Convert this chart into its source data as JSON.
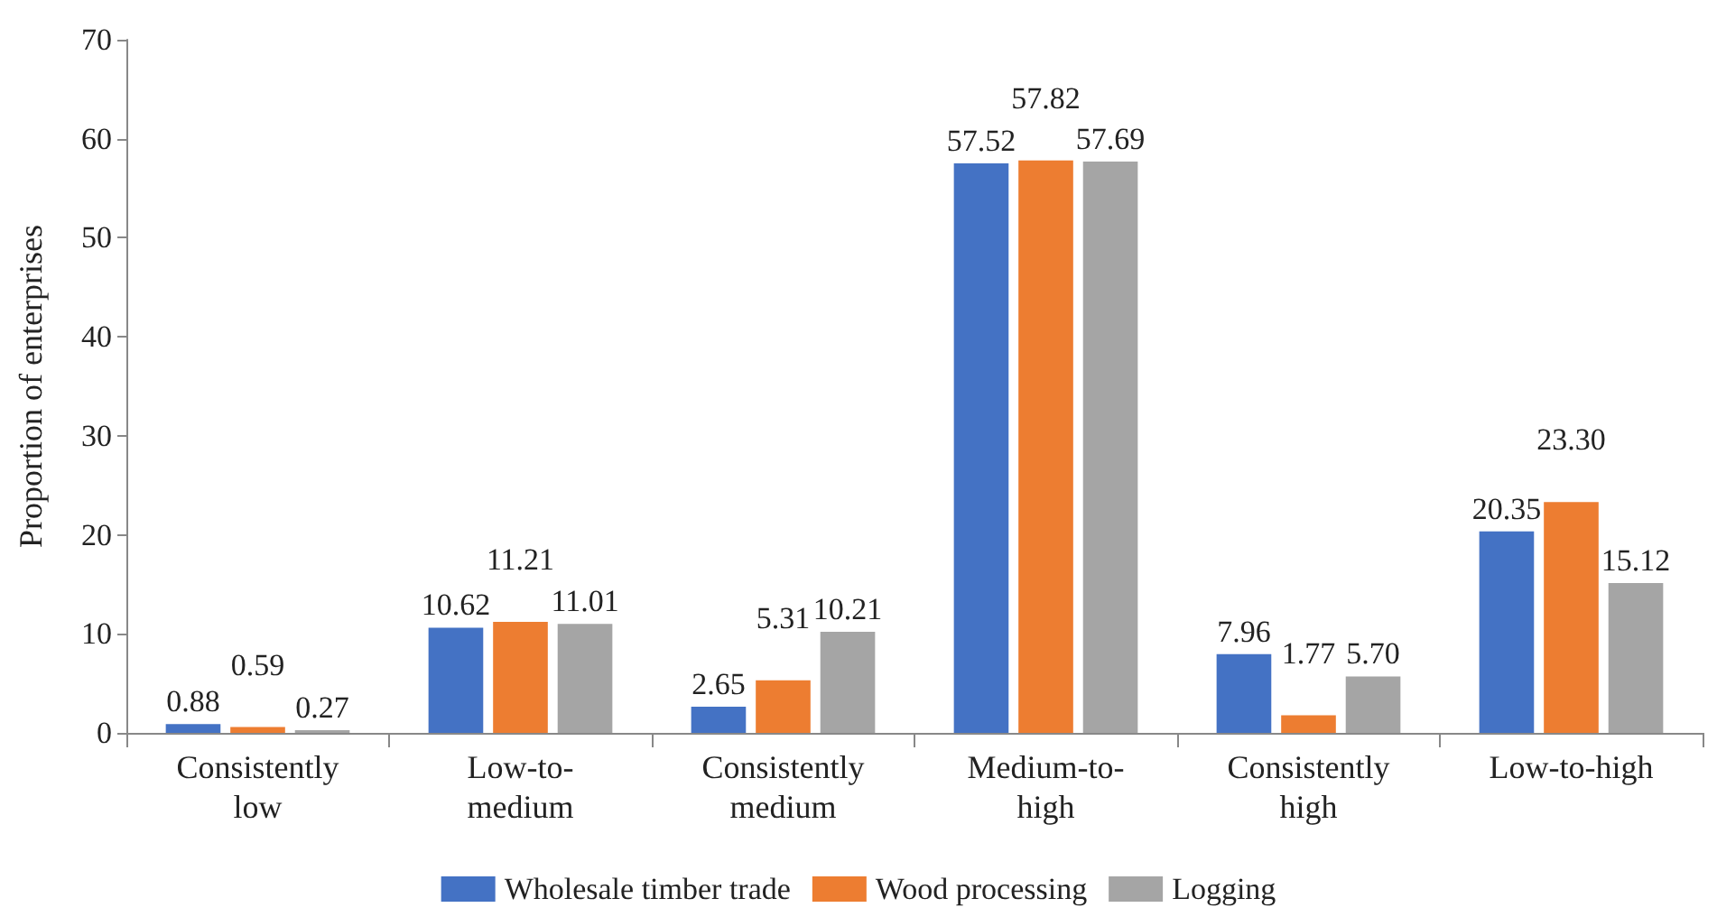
{
  "chart_data": {
    "type": "bar",
    "ylabel": "Proportion of enterprises",
    "categories": [
      "Consistently low",
      "Low-to-medium",
      "Consistently medium",
      "Medium-to-high",
      "Consistently high",
      "Low-to-high"
    ],
    "series": [
      {
        "name": "Wholesale timber trade",
        "color": "#4472c4",
        "values": [
          0.88,
          10.62,
          2.65,
          57.52,
          7.96,
          20.35
        ],
        "value_labels": [
          "0.88",
          "10.62",
          "2.65",
          "57.52",
          "7.96",
          "20.35"
        ]
      },
      {
        "name": "Wood processing",
        "color": "#ed7d31",
        "values": [
          0.59,
          11.21,
          5.31,
          57.82,
          1.77,
          23.3
        ],
        "value_labels": [
          "0.59",
          "11.21",
          "5.31",
          "57.82",
          "1.77",
          "23.30"
        ]
      },
      {
        "name": "Logging",
        "color": "#a5a5a5",
        "values": [
          0.27,
          11.01,
          10.21,
          57.69,
          5.7,
          15.12
        ],
        "value_labels": [
          "0.27",
          "11.01",
          "10.21",
          "57.69",
          "5.70",
          "15.12"
        ]
      }
    ],
    "ylim": [
      0,
      70
    ],
    "yticks": [
      0,
      10,
      20,
      30,
      40,
      50,
      60,
      70
    ],
    "grid": false,
    "legend": "bottom"
  }
}
